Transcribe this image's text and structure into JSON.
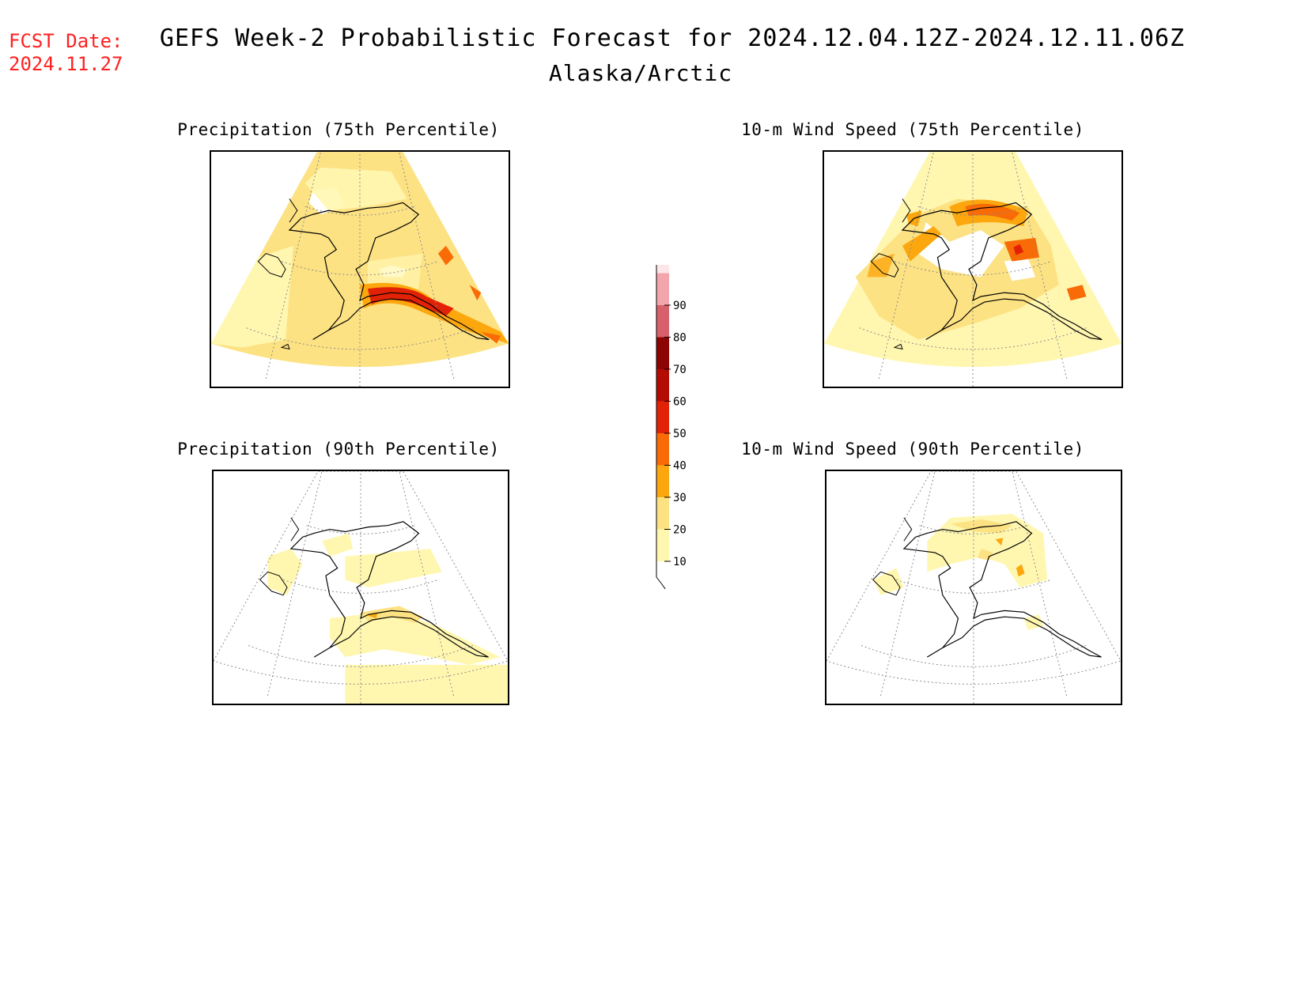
{
  "fcst": {
    "line1": "FCST Date:",
    "line2": "2024.11.27"
  },
  "title": "GEFS Week-2 Probabilistic Forecast for 2024.12.04.12Z-2024.12.11.06Z",
  "subtitle": "Alaska/Arctic",
  "panels": {
    "p75": {
      "title": "Precipitation (75th Percentile)"
    },
    "w75": {
      "title": "10-m Wind Speed (75th Percentile)"
    },
    "p90": {
      "title": "Precipitation (90th Percentile)"
    },
    "w90": {
      "title": "10-m Wind Speed (90th Percentile)"
    }
  },
  "colorbar": {
    "labels": [
      "10",
      "20",
      "30",
      "40",
      "50",
      "60",
      "70",
      "80",
      "90"
    ],
    "colors": {
      "10": "#fff7b0",
      "20": "#fde283",
      "30": "#fca70e",
      "40": "#f86b06",
      "50": "#e22206",
      "60": "#b40c04",
      "70": "#8c0404",
      "80": "#d8606a",
      "90": "#f2a6ab",
      "top": "#fde6ea"
    }
  }
}
